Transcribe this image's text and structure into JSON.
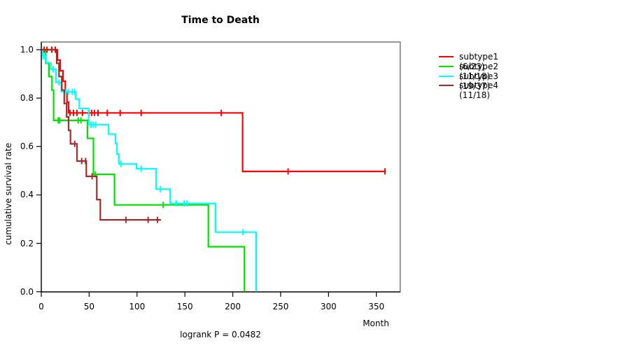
{
  "title": "Time to Death",
  "footer": "logrank P = 0.0482",
  "x_axis": {
    "label": "Month",
    "min": 0,
    "max": 350,
    "ticks": [
      {
        "label": "0",
        "value": 0
      },
      {
        "label": "50",
        "value": 50
      },
      {
        "label": "100",
        "value": 100
      },
      {
        "label": "150",
        "value": 150
      },
      {
        "label": "200",
        "value": 200
      },
      {
        "label": "250",
        "value": 250
      },
      {
        "label": "300",
        "value": 300
      },
      {
        "label": "350",
        "value": 350
      }
    ]
  },
  "y_axis": {
    "label": "cumulative survival rate",
    "min": 0.0,
    "max": 1.0,
    "ticks": [
      {
        "label": "1.0",
        "value": 1.0
      },
      {
        "label": "0.8",
        "value": 0.8
      },
      {
        "label": "0.6",
        "value": 0.6
      },
      {
        "label": "0.4",
        "value": 0.4
      },
      {
        "label": "0.2",
        "value": 0.2
      },
      {
        "label": "0.0",
        "value": 0.0
      }
    ]
  },
  "legend": {
    "items": [
      {
        "label": "subtype1 (6/23)",
        "color": "#ff0000"
      },
      {
        "label": "subtype2 (11/18)",
        "color": "#00e100"
      },
      {
        "label": "subtype3 (19/37)",
        "color": "#00ffff"
      },
      {
        "label": "subtype4 (11/18)",
        "color": "#a52a2a"
      }
    ]
  },
  "chart_data": {
    "type": "line",
    "variant": "kaplan-meier-step",
    "title": "Time to Death",
    "xlabel": "Month",
    "ylabel": "cumulative survival rate",
    "xlim": [
      0,
      375
    ],
    "ylim": [
      0.0,
      1.0
    ],
    "grid": false,
    "legend_position": "right-outside",
    "series": [
      {
        "name": "subtype1 (6/23)",
        "color": "#ff0000",
        "steps": [
          [
            0,
            1.0
          ],
          [
            16.8,
            0.957
          ],
          [
            19.7,
            0.913
          ],
          [
            22.7,
            0.87
          ],
          [
            25.1,
            0.826
          ],
          [
            26.8,
            0.783
          ],
          [
            28.5,
            0.739
          ],
          [
            210.3,
            0.497
          ]
        ],
        "end": 359,
        "censors": [
          [
            3,
            1.0
          ],
          [
            6,
            1.0
          ],
          [
            11,
            1.0
          ],
          [
            14.6,
            1.0
          ],
          [
            30,
            0.739
          ],
          [
            33.6,
            0.739
          ],
          [
            37.3,
            0.739
          ],
          [
            43,
            0.739
          ],
          [
            49.7,
            0.739
          ],
          [
            52.6,
            0.739
          ],
          [
            55.5,
            0.739
          ],
          [
            59.2,
            0.739
          ],
          [
            68.9,
            0.739
          ],
          [
            82.4,
            0.739
          ],
          [
            104.3,
            0.739
          ],
          [
            188,
            0.739
          ],
          [
            257.8,
            0.497
          ],
          [
            359,
            0.497
          ]
        ]
      },
      {
        "name": "subtype2 (11/18)",
        "color": "#00e100",
        "steps": [
          [
            0,
            1.0
          ],
          [
            4.6,
            0.944
          ],
          [
            8,
            0.889
          ],
          [
            11.2,
            0.833
          ],
          [
            12.9,
            0.708
          ],
          [
            48.2,
            0.634
          ],
          [
            54.5,
            0.485
          ],
          [
            76.5,
            0.359
          ],
          [
            174.5,
            0.186
          ],
          [
            212.2,
            0.0
          ]
        ],
        "end": 212.2,
        "censors": [
          [
            17.8,
            0.708
          ],
          [
            19.2,
            0.708
          ],
          [
            38.5,
            0.708
          ],
          [
            41.4,
            0.708
          ],
          [
            56.5,
            0.485
          ],
          [
            127.4,
            0.359
          ]
        ]
      },
      {
        "name": "subtype3 (19/37)",
        "color": "#00ffff",
        "steps": [
          [
            0,
            1.0
          ],
          [
            1.5,
            0.973
          ],
          [
            5,
            0.946
          ],
          [
            10,
            0.919
          ],
          [
            15.3,
            0.865
          ],
          [
            21,
            0.826
          ],
          [
            36,
            0.796
          ],
          [
            39.7,
            0.757
          ],
          [
            49.5,
            0.69
          ],
          [
            70.2,
            0.651
          ],
          [
            77.5,
            0.613
          ],
          [
            79,
            0.569
          ],
          [
            81,
            0.528
          ],
          [
            99.4,
            0.508
          ],
          [
            120,
            0.424
          ],
          [
            134.7,
            0.365
          ],
          [
            182,
            0.246
          ],
          [
            224.4,
            0.0
          ]
        ],
        "end": 224.4,
        "censors": [
          [
            2,
            0.973
          ],
          [
            3.5,
            0.973
          ],
          [
            12.4,
            0.919
          ],
          [
            18.5,
            0.865
          ],
          [
            25.8,
            0.826
          ],
          [
            28.3,
            0.826
          ],
          [
            32.4,
            0.826
          ],
          [
            34.9,
            0.826
          ],
          [
            51.9,
            0.69
          ],
          [
            54.3,
            0.69
          ],
          [
            56.8,
            0.69
          ],
          [
            83.1,
            0.528
          ],
          [
            104.3,
            0.508
          ],
          [
            124.5,
            0.424
          ],
          [
            141,
            0.365
          ],
          [
            149.3,
            0.365
          ],
          [
            152.3,
            0.365
          ],
          [
            210.7,
            0.246
          ]
        ]
      },
      {
        "name": "subtype4 (11/18)",
        "color": "#a52a2a",
        "steps": [
          [
            0,
            1.0
          ],
          [
            16.1,
            0.944
          ],
          [
            18.5,
            0.889
          ],
          [
            21.4,
            0.833
          ],
          [
            24,
            0.778
          ],
          [
            26.5,
            0.722
          ],
          [
            28.5,
            0.667
          ],
          [
            30.5,
            0.611
          ],
          [
            37.3,
            0.54
          ],
          [
            47,
            0.477
          ],
          [
            58,
            0.381
          ],
          [
            61.6,
            0.297
          ]
        ],
        "end": 125,
        "censors": [
          [
            34.9,
            0.611
          ],
          [
            42.2,
            0.54
          ],
          [
            46.3,
            0.54
          ],
          [
            53.1,
            0.477
          ],
          [
            88.4,
            0.297
          ],
          [
            111.6,
            0.297
          ],
          [
            121.3,
            0.297
          ]
        ]
      }
    ]
  }
}
